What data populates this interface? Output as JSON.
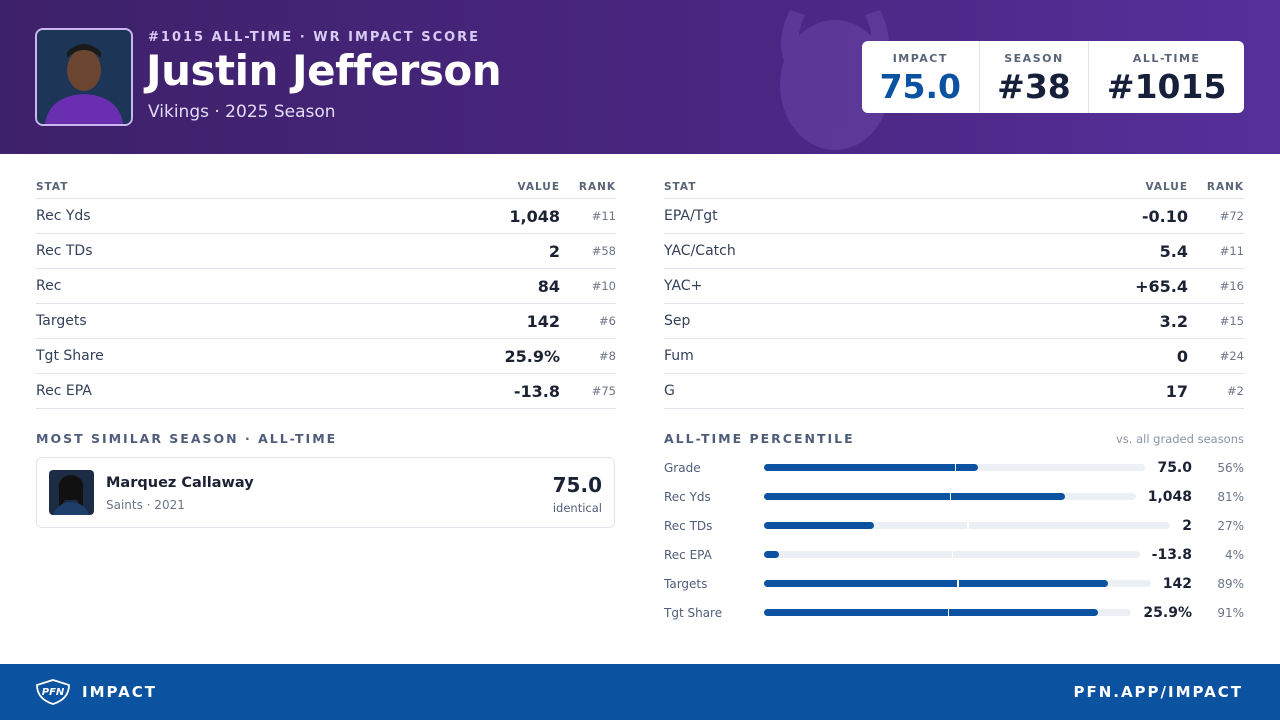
{
  "header": {
    "kicker": "#1015 ALL-TIME · WR IMPACT SCORE",
    "name": "Justin Jefferson",
    "team_line": "Vikings · 2025 Season",
    "scores": [
      {
        "label": "IMPACT",
        "value": "75.0"
      },
      {
        "label": "SEASON",
        "value": "#38"
      },
      {
        "label": "ALL-TIME",
        "value": "#1015"
      }
    ]
  },
  "tables": [
    {
      "columns": [
        "STAT",
        "VALUE",
        "RANK"
      ],
      "rows": [
        [
          "Rec Yds",
          "1,048",
          "#11"
        ],
        [
          "Rec TDs",
          "2",
          "#58"
        ],
        [
          "Rec",
          "84",
          "#10"
        ],
        [
          "Targets",
          "142",
          "#6"
        ],
        [
          "Tgt Share",
          "25.9%",
          "#8"
        ],
        [
          "Rec EPA",
          "-13.8",
          "#75"
        ]
      ]
    },
    {
      "columns": [
        "STAT",
        "VALUE",
        "RANK"
      ],
      "rows": [
        [
          "EPA/Tgt",
          "-0.10",
          "#72"
        ],
        [
          "YAC/Catch",
          "5.4",
          "#11"
        ],
        [
          "YAC+",
          "+65.4",
          "#16"
        ],
        [
          "Sep",
          "3.2",
          "#15"
        ],
        [
          "Fum",
          "0",
          "#24"
        ],
        [
          "G",
          "17",
          "#2"
        ]
      ]
    }
  ],
  "similar": {
    "title": "MOST SIMILAR SEASON · ALL-TIME",
    "player": "Marquez Callaway",
    "meta": "Saints · 2021",
    "score": "75.0",
    "note": "identical"
  },
  "percentile": {
    "title": "ALL-TIME PERCENTILE",
    "note": "vs. all graded seasons",
    "rows": [
      {
        "label": "Grade",
        "value": "75.0",
        "pct": 56,
        "pct_label": "56%"
      },
      {
        "label": "Rec Yds",
        "value": "1,048",
        "pct": 81,
        "pct_label": "81%"
      },
      {
        "label": "Rec TDs",
        "value": "2",
        "pct": 27,
        "pct_label": "27%"
      },
      {
        "label": "Rec EPA",
        "value": "-13.8",
        "pct": 4,
        "pct_label": "4%"
      },
      {
        "label": "Targets",
        "value": "142",
        "pct": 89,
        "pct_label": "89%"
      },
      {
        "label": "Tgt Share",
        "value": "25.9%",
        "pct": 91,
        "pct_label": "91%"
      }
    ]
  },
  "footer": {
    "logo": "PFN",
    "brand": "IMPACT",
    "url": "PFN.APP/IMPACT"
  }
}
